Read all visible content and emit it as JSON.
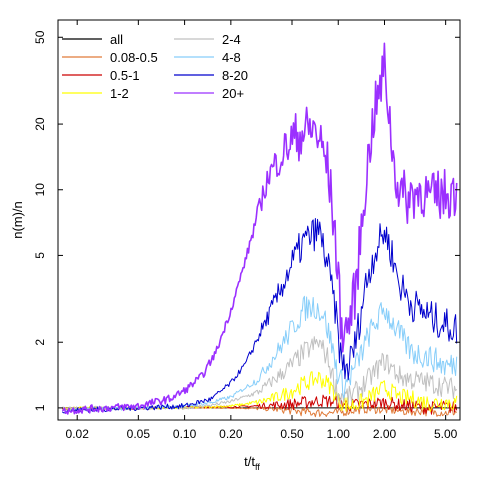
{
  "chart_data": {
    "type": "line",
    "title": "",
    "xlabel": "t/t",
    "xlabel_sub": "ff",
    "ylabel": "n(m)/n",
    "xscale": "log",
    "yscale": "log",
    "xlim": [
      0.015,
      6.2
    ],
    "ylim": [
      0.88,
      60
    ],
    "xticks": [
      0.02,
      0.05,
      0.1,
      0.2,
      0.5,
      1.0,
      2.0,
      5.0
    ],
    "xtick_labels": [
      "0.02",
      "0.05",
      "0.10",
      "0.20",
      "0.50",
      "1.00",
      "2.00",
      "5.00"
    ],
    "yticks": [
      1,
      2,
      5,
      10,
      20,
      50
    ],
    "ytick_labels": [
      "1",
      "2",
      "5",
      "10",
      "20",
      "50"
    ],
    "grid": false,
    "legend": "top-left",
    "series": [
      {
        "name": "all",
        "color": "#000000",
        "width": 1,
        "x": [
          0.016,
          5.9
        ],
        "y": [
          1.0,
          1.0
        ]
      },
      {
        "name": "0.08-0.5",
        "color": "#e07b39",
        "width": 1,
        "x": [
          0.016,
          0.05,
          0.1,
          0.2,
          0.35,
          0.5,
          0.7,
          1.0,
          1.3,
          1.6,
          2.0,
          2.5,
          3.0,
          3.5,
          4.0,
          4.5,
          5.0,
          5.9
        ],
        "y": [
          0.98,
          0.99,
          1.0,
          1.0,
          0.99,
          0.97,
          0.95,
          0.95,
          0.98,
          0.99,
          0.98,
          0.97,
          0.96,
          0.97,
          0.95,
          0.96,
          0.95,
          0.96
        ],
        "noise": 0.02
      },
      {
        "name": "0.5-1",
        "color": "#cc0000",
        "width": 1,
        "x": [
          0.016,
          0.05,
          0.1,
          0.2,
          0.3,
          0.5,
          0.7,
          0.8,
          1.0,
          1.2,
          1.5,
          2.0,
          2.5,
          3.0,
          4.0,
          5.0,
          5.9
        ],
        "y": [
          0.99,
          1.0,
          1.01,
          1.01,
          1.02,
          1.04,
          1.07,
          1.08,
          1.06,
          1.03,
          1.04,
          1.06,
          1.03,
          1.02,
          1.0,
          1.01,
          1.0
        ],
        "noise": 0.03
      },
      {
        "name": "1-2",
        "color": "#ffff00",
        "width": 1,
        "x": [
          0.016,
          0.05,
          0.1,
          0.2,
          0.3,
          0.4,
          0.5,
          0.6,
          0.75,
          0.9,
          1.0,
          1.2,
          1.5,
          2.0,
          2.5,
          3.0,
          4.0,
          5.0,
          5.9
        ],
        "y": [
          1.0,
          1.0,
          1.0,
          1.02,
          1.06,
          1.12,
          1.2,
          1.29,
          1.38,
          1.25,
          1.08,
          1.02,
          1.08,
          1.24,
          1.12,
          1.1,
          1.05,
          1.07,
          1.05
        ],
        "noise": 0.04
      },
      {
        "name": "2-4",
        "color": "#c0c0c0",
        "width": 1,
        "x": [
          0.016,
          0.05,
          0.1,
          0.15,
          0.2,
          0.3,
          0.4,
          0.5,
          0.6,
          0.75,
          0.85,
          1.0,
          1.2,
          1.5,
          2.0,
          2.5,
          3.0,
          4.0,
          5.0,
          5.9
        ],
        "y": [
          1.0,
          1.0,
          1.0,
          1.03,
          1.07,
          1.18,
          1.38,
          1.58,
          1.8,
          2.0,
          1.7,
          1.15,
          1.12,
          1.3,
          1.65,
          1.4,
          1.35,
          1.3,
          1.25,
          1.22
        ],
        "noise": 0.05
      },
      {
        "name": "4-8",
        "color": "#87cefa",
        "width": 1,
        "x": [
          0.016,
          0.05,
          0.1,
          0.15,
          0.2,
          0.3,
          0.4,
          0.5,
          0.6,
          0.7,
          0.8,
          0.9,
          1.0,
          1.1,
          1.3,
          1.6,
          2.0,
          2.3,
          2.7,
          3.0,
          3.5,
          4.0,
          5.0,
          5.9
        ],
        "y": [
          0.98,
          1.0,
          1.02,
          1.06,
          1.12,
          1.35,
          1.8,
          2.3,
          2.85,
          2.95,
          2.7,
          2.0,
          1.4,
          1.25,
          1.55,
          2.2,
          2.85,
          2.4,
          2.0,
          1.8,
          1.75,
          1.7,
          1.55,
          1.6
        ],
        "noise": 0.06
      },
      {
        "name": "8-20",
        "color": "#0000cd",
        "width": 1,
        "x": [
          0.016,
          0.05,
          0.1,
          0.15,
          0.2,
          0.25,
          0.3,
          0.4,
          0.5,
          0.6,
          0.7,
          0.75,
          0.85,
          0.95,
          1.05,
          1.15,
          1.3,
          1.5,
          1.7,
          2.0,
          2.2,
          2.5,
          3.0,
          3.5,
          4.0,
          5.0,
          5.9
        ],
        "y": [
          0.97,
          1.0,
          1.02,
          1.1,
          1.3,
          1.6,
          2.1,
          3.2,
          4.6,
          5.8,
          6.3,
          6.5,
          4.6,
          2.9,
          1.6,
          1.5,
          2.0,
          3.6,
          5.0,
          6.5,
          5.3,
          3.7,
          3.0,
          2.8,
          2.6,
          2.4,
          2.3
        ],
        "noise": 0.08
      },
      {
        "name": "20+",
        "color": "#9b30ff",
        "width": 1.6,
        "x": [
          0.016,
          0.05,
          0.08,
          0.1,
          0.13,
          0.16,
          0.2,
          0.25,
          0.3,
          0.35,
          0.4,
          0.5,
          0.6,
          0.7,
          0.75,
          0.85,
          0.95,
          1.05,
          1.15,
          1.3,
          1.5,
          1.7,
          1.9,
          2.0,
          2.1,
          2.3,
          2.5,
          2.8,
          3.0,
          3.5,
          4.0,
          4.5,
          5.0,
          5.9
        ],
        "y": [
          0.97,
          1.02,
          1.1,
          1.2,
          1.4,
          1.8,
          2.8,
          4.8,
          7.8,
          11.5,
          13.5,
          17.0,
          18.5,
          19.0,
          17.0,
          13.0,
          6.5,
          2.3,
          2.3,
          3.5,
          10.5,
          22.0,
          30.0,
          38.0,
          26.0,
          13.0,
          10.0,
          9.0,
          9.5,
          10.0,
          9.0,
          9.5,
          9.5,
          10.0
        ],
        "noise": 0.12
      }
    ]
  }
}
